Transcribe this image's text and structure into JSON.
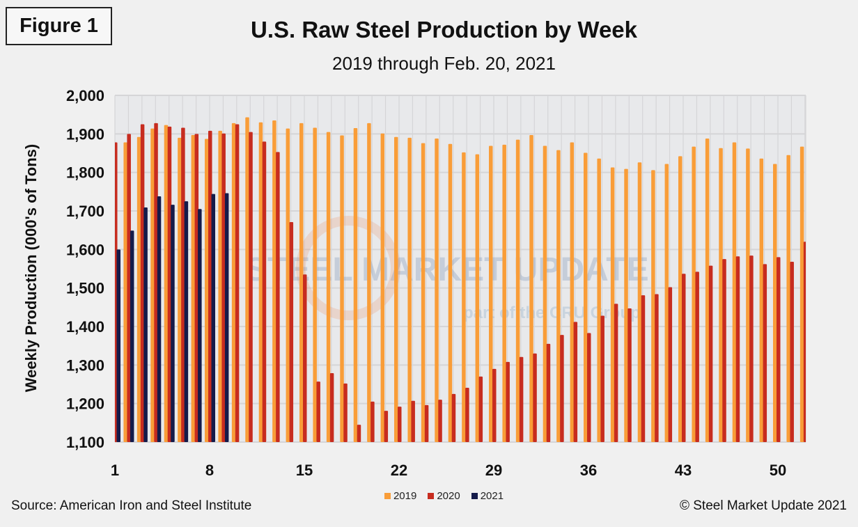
{
  "figure_label": "Figure 1",
  "source": "Source: American Iron and Steel Institute",
  "copyright": "© Steel Market Update 2021",
  "watermark": {
    "main": "STEEL MARKET UPDATE",
    "sub": "part of the CRU Group"
  },
  "chart_data": {
    "type": "bar",
    "title": "U.S. Raw Steel Production by Week",
    "subtitle": "2019 through Feb. 20, 2021",
    "xlabel": "",
    "ylabel": "Weekly Production (000's of Tons)",
    "ylim": [
      1100,
      2000
    ],
    "yticks": [
      "1,100",
      "1,200",
      "1,300",
      "1,400",
      "1,500",
      "1,600",
      "1,700",
      "1,800",
      "1,900",
      "2,000"
    ],
    "xticks": [
      "1",
      "8",
      "15",
      "22",
      "29",
      "36",
      "43",
      "50"
    ],
    "xtick_weeks": [
      1,
      8,
      15,
      22,
      29,
      36,
      43,
      50
    ],
    "grid": true,
    "legend_position": "bottom",
    "weeks": [
      1,
      2,
      3,
      4,
      5,
      6,
      7,
      8,
      9,
      10,
      11,
      12,
      13,
      14,
      15,
      16,
      17,
      18,
      19,
      20,
      21,
      22,
      23,
      24,
      25,
      26,
      27,
      28,
      29,
      30,
      31,
      32,
      33,
      34,
      35,
      36,
      37,
      38,
      39,
      40,
      41,
      42,
      43,
      44,
      45,
      46,
      47,
      48,
      49,
      50,
      51,
      52
    ],
    "series": [
      {
        "name": "2019",
        "color": "#f99d38",
        "values": [
          null,
          1878,
          1892,
          1914,
          1923,
          1890,
          1897,
          1887,
          1908,
          1928,
          1943,
          1930,
          1935,
          1914,
          1928,
          1916,
          1905,
          1896,
          1915,
          1928,
          1901,
          1892,
          1890,
          1876,
          1888,
          1874,
          1852,
          1847,
          1869,
          1872,
          1885,
          1897,
          1869,
          1858,
          1878,
          1851,
          1836,
          1813,
          1809,
          1826,
          1806,
          1822,
          1842,
          1867,
          1888,
          1863,
          1878,
          1862,
          1836,
          1822,
          1845,
          1867
        ]
      },
      {
        "name": "2020",
        "color": "#c72c1f",
        "values": [
          1878,
          1900,
          1925,
          1928,
          1919,
          1916,
          1900,
          1908,
          1901,
          1925,
          1905,
          1880,
          1853,
          1671,
          1535,
          1257,
          1279,
          1252,
          1145,
          1205,
          1181,
          1192,
          1207,
          1196,
          1210,
          1225,
          1241,
          1270,
          1290,
          1308,
          1321,
          1330,
          1355,
          1378,
          1412,
          1383,
          1428,
          1459,
          1447,
          1481,
          1484,
          1502,
          1537,
          1542,
          1558,
          1575,
          1582,
          1584,
          1562,
          1580,
          1568,
          1620
        ]
      },
      {
        "name": "2021",
        "color": "#141b4a",
        "values": [
          1600,
          1649,
          1709,
          1738,
          1716,
          1725,
          1705,
          1744,
          1746
        ]
      }
    ]
  }
}
